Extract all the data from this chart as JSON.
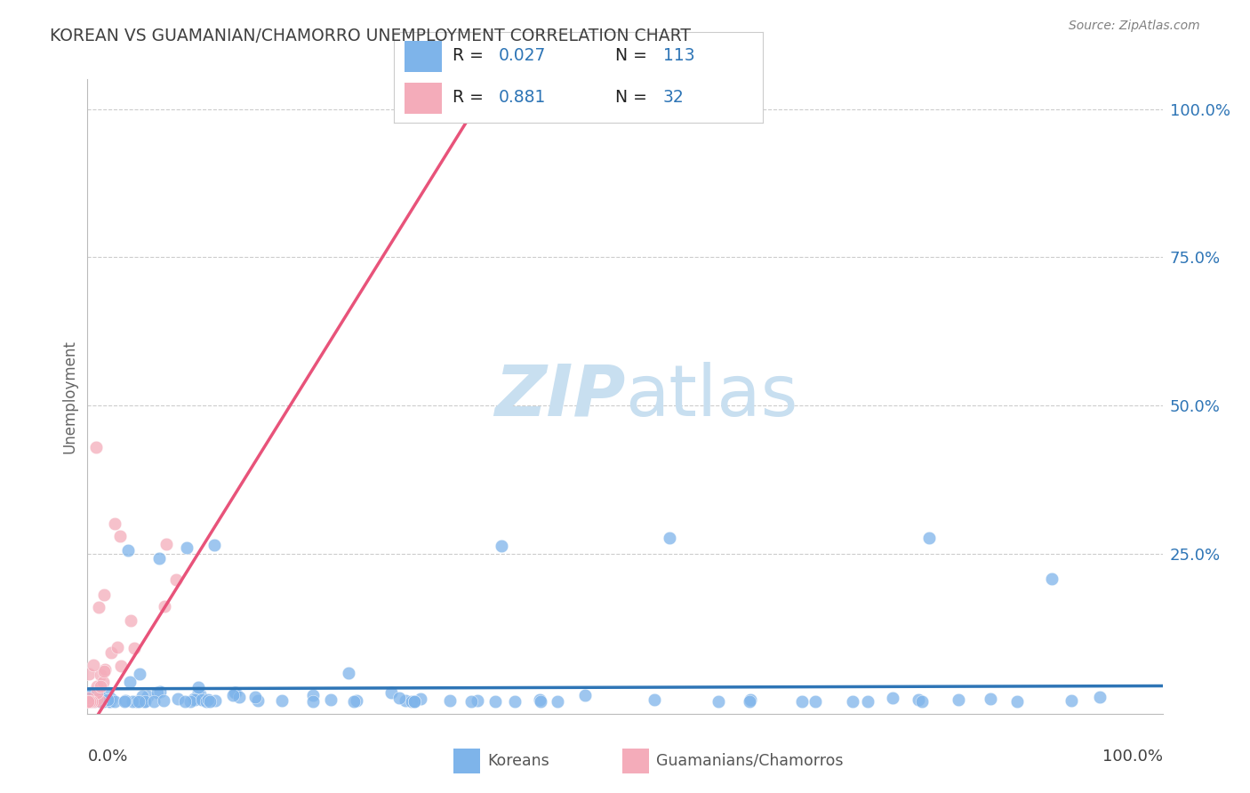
{
  "title": "KOREAN VS GUAMANIAN/CHAMORRO UNEMPLOYMENT CORRELATION CHART",
  "source": "Source: ZipAtlas.com",
  "ylabel": "Unemployment",
  "background_color": "#ffffff",
  "korean_color": "#7EB4EA",
  "guam_color": "#F4ACBA",
  "korean_line_color": "#2E75B6",
  "guam_line_color": "#E8537A",
  "R_korean": 0.027,
  "N_korean": 113,
  "R_guam": 0.881,
  "N_guam": 32,
  "legend_R_color": "#2E75B6",
  "title_color": "#404040",
  "source_color": "#808080",
  "watermark_color": "#C8DFF0",
  "ytick_labels": [
    "25.0%",
    "50.0%",
    "75.0%",
    "100.0%"
  ],
  "ytick_vals": [
    0.25,
    0.5,
    0.75,
    1.0
  ]
}
